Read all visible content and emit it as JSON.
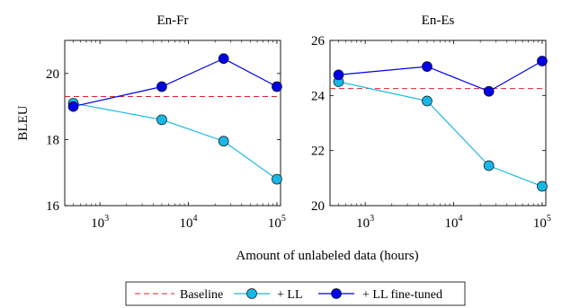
{
  "chart_data": [
    {
      "type": "line",
      "title": "En-Fr",
      "ylabel": "BLEU",
      "xlabel": "",
      "x_scale": "log",
      "xlim": [
        400,
        110000
      ],
      "ylim": [
        16,
        21
      ],
      "xticks": [
        1000,
        10000,
        100000
      ],
      "xtick_labels": [
        [
          "10",
          "3"
        ],
        [
          "10",
          "4"
        ],
        [
          "10",
          "5"
        ]
      ],
      "yticks": [
        16,
        18,
        20
      ],
      "ytick_labels": [
        "16",
        "18",
        "20"
      ],
      "grid": false,
      "baseline": 19.3,
      "series": [
        {
          "name": "+ LL",
          "color": "#17b8e6",
          "x": [
            500,
            5000,
            25000,
            100000
          ],
          "y": [
            19.1,
            18.6,
            17.95,
            16.8
          ]
        },
        {
          "name": "+ LL fine-tuned",
          "color": "#0000e6",
          "x": [
            500,
            5000,
            25000,
            100000
          ],
          "y": [
            19.0,
            19.6,
            20.45,
            19.6
          ]
        }
      ]
    },
    {
      "type": "line",
      "title": "En-Es",
      "ylabel": "",
      "xlabel": "",
      "x_scale": "log",
      "xlim": [
        400,
        110000
      ],
      "ylim": [
        20,
        26
      ],
      "xticks": [
        1000,
        10000,
        100000
      ],
      "xtick_labels": [
        [
          "10",
          "3"
        ],
        [
          "10",
          "4"
        ],
        [
          "10",
          "5"
        ]
      ],
      "yticks": [
        20,
        22,
        24,
        26
      ],
      "ytick_labels": [
        "20",
        "22",
        "24",
        "26"
      ],
      "grid": false,
      "baseline": 24.25,
      "series": [
        {
          "name": "+ LL",
          "color": "#17b8e6",
          "x": [
            500,
            5000,
            25000,
            100000
          ],
          "y": [
            24.5,
            23.8,
            21.45,
            20.7
          ]
        },
        {
          "name": "+ LL fine-tuned",
          "color": "#0000e6",
          "x": [
            500,
            5000,
            25000,
            100000
          ],
          "y": [
            24.75,
            25.05,
            24.15,
            25.25
          ]
        }
      ]
    }
  ],
  "shared_xlabel": "Amount of unlabeled data (hours)",
  "legend": {
    "placement": "bottom",
    "entries": [
      {
        "label": "Baseline",
        "color": "#e0202a",
        "style": "dashed"
      },
      {
        "label": "+ LL",
        "color": "#17b8e6",
        "style": "solid-marker"
      },
      {
        "label": "+ LL fine-tuned",
        "color": "#0000e6",
        "style": "solid-marker"
      }
    ]
  }
}
